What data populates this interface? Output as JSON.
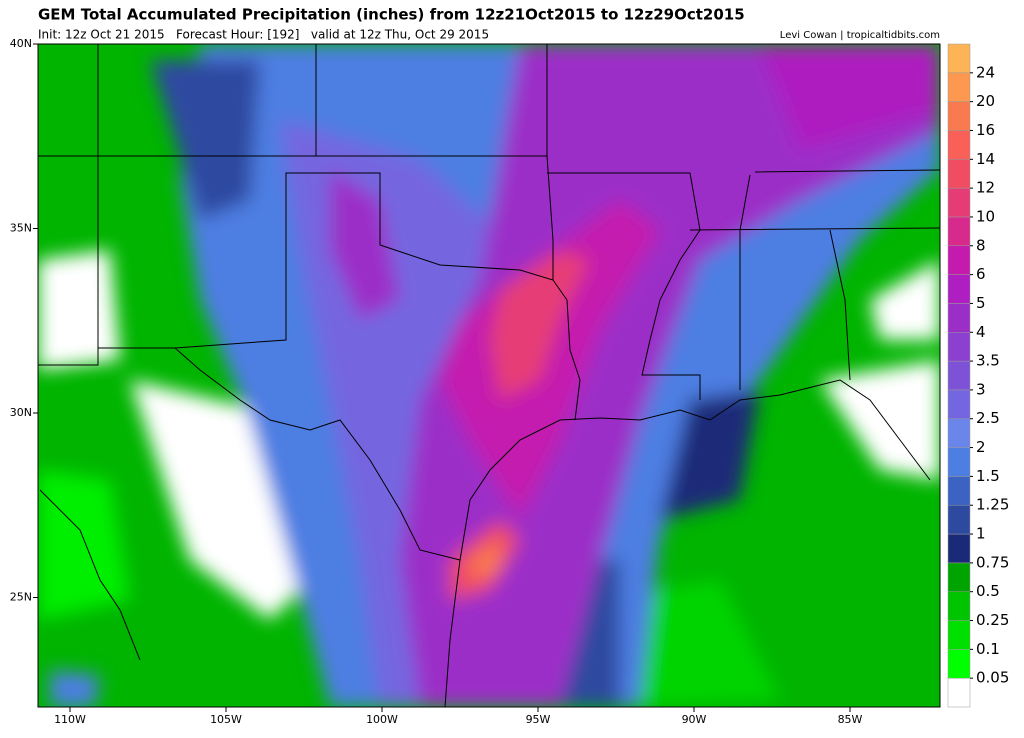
{
  "header": {
    "title": "GEM Total Accumulated Precipitation (inches) from 12z21Oct2015 to 12z29Oct2015",
    "subtitle": "Init: 12z Oct 21 2015   Forecast Hour: [192]   valid at 12z Thu, Oct 29 2015",
    "credit": "Levi Cowan | tropicaltidbits.com"
  },
  "map": {
    "lat_ticks": [
      {
        "value": 40,
        "label": "40N"
      },
      {
        "value": 35,
        "label": "35N"
      },
      {
        "value": 30,
        "label": "30N"
      },
      {
        "value": 25,
        "label": "25N"
      }
    ],
    "lon_ticks": [
      {
        "value": 110,
        "label": "110W"
      },
      {
        "value": 105,
        "label": "105W"
      },
      {
        "value": 100,
        "label": "100W"
      },
      {
        "value": 95,
        "label": "95W"
      },
      {
        "value": 90,
        "label": "90W"
      },
      {
        "value": 85,
        "label": "85W"
      }
    ]
  },
  "colorbar": {
    "levels": [
      0.05,
      0.1,
      0.25,
      0.5,
      0.75,
      1,
      1.25,
      1.5,
      2,
      2.5,
      3,
      3.5,
      4,
      5,
      6,
      8,
      10,
      12,
      14,
      16,
      20,
      24
    ],
    "colors": [
      "#ffffff",
      "#00ff00",
      "#00e000",
      "#00c400",
      "#00a400",
      "#1b2a78",
      "#2e4aa0",
      "#3c62c4",
      "#4d7ee2",
      "#6a86ea",
      "#7466e0",
      "#7e52d6",
      "#8c40d0",
      "#9c2ec8",
      "#ae1ec0",
      "#c41aae",
      "#d82a8c",
      "#e63c76",
      "#f04c62",
      "#f86058",
      "#fa7a50",
      "#fc9850",
      "#fcb456"
    ]
  }
}
